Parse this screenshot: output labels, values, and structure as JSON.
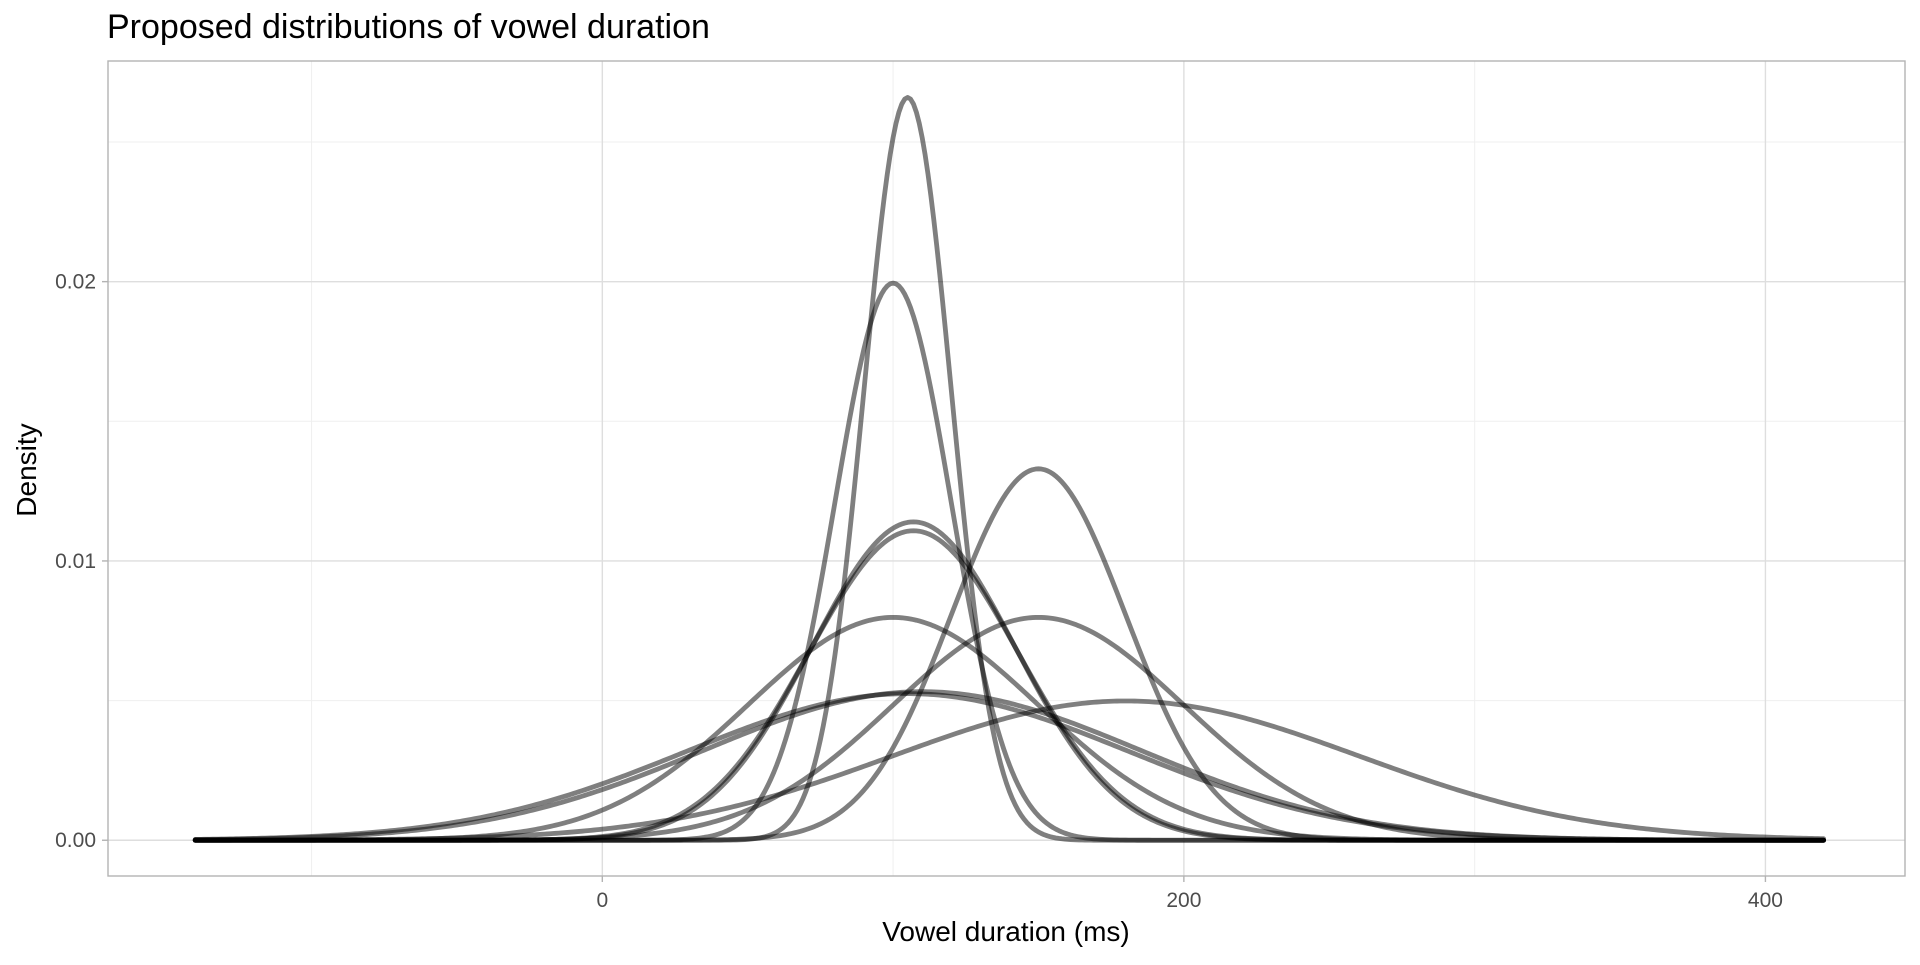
{
  "chart_data": {
    "type": "line",
    "title": "Proposed distributions of vowel duration",
    "xlabel": "Vowel duration (ms)",
    "ylabel": "Density",
    "xlim": [
      -170,
      448
    ],
    "ylim": [
      -0.00128,
      0.0279
    ],
    "x_range": [
      -140,
      420
    ],
    "x_ticks": [
      0,
      200,
      400
    ],
    "x_tick_labels": [
      "0",
      "200",
      "400"
    ],
    "x_minor_ticks": [
      -100,
      100,
      300
    ],
    "y_ticks": [
      0,
      0.01,
      0.02
    ],
    "y_tick_labels": [
      "0.00",
      "0.01",
      "0.02"
    ],
    "y_minor_ticks": [
      0.005,
      0.015,
      0.025
    ],
    "grid": true,
    "legend": "none",
    "line_color": "#000000",
    "line_opacity": 0.5,
    "series": [
      {
        "mean": 105,
        "sd": 15,
        "peak_density": 0.0266
      },
      {
        "mean": 100,
        "sd": 20,
        "peak_density": 0.0199
      },
      {
        "mean": 150,
        "sd": 30,
        "peak_density": 0.0133
      },
      {
        "mean": 107,
        "sd": 35,
        "peak_density": 0.0114
      },
      {
        "mean": 107,
        "sd": 36,
        "peak_density": 0.0111
      },
      {
        "mean": 100,
        "sd": 50,
        "peak_density": 0.008
      },
      {
        "mean": 150,
        "sd": 50,
        "peak_density": 0.008
      },
      {
        "mean": 110,
        "sd": 75,
        "peak_density": 0.0053
      },
      {
        "mean": 105,
        "sd": 76,
        "peak_density": 0.0052
      },
      {
        "mean": 180,
        "sd": 80,
        "peak_density": 0.005
      }
    ]
  }
}
